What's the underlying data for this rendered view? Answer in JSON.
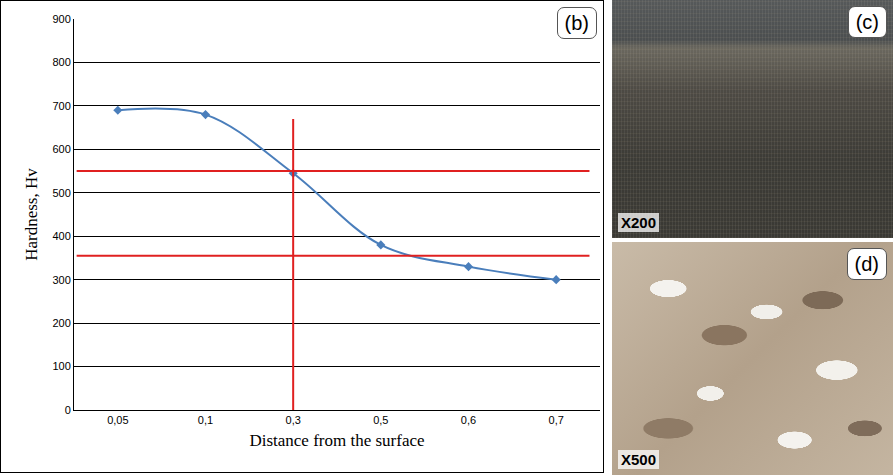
{
  "chart_data": {
    "type": "line",
    "panel_label": "(b)",
    "xlabel": "Distance from the surface",
    "ylabel": "Hardness, Hv",
    "categories": [
      "0,05",
      "0,1",
      "0,3",
      "0,5",
      "0,6",
      "0,7"
    ],
    "values": [
      690,
      680,
      545,
      380,
      330,
      300
    ],
    "color": "#4a7ebb",
    "marker": "diamond",
    "line_style": "smooth",
    "ylim": [
      0,
      900
    ],
    "yticks": [
      0,
      100,
      200,
      300,
      400,
      500,
      600,
      700,
      800,
      900
    ],
    "grid": true,
    "reference_lines": {
      "color": "#e02020",
      "y": [
        550,
        355
      ],
      "x": "0,3",
      "x_line_ylim": [
        0,
        670
      ]
    }
  },
  "images": [
    {
      "label": "(c)",
      "magnification": "X200"
    },
    {
      "label": "(d)",
      "magnification": "X500"
    }
  ]
}
